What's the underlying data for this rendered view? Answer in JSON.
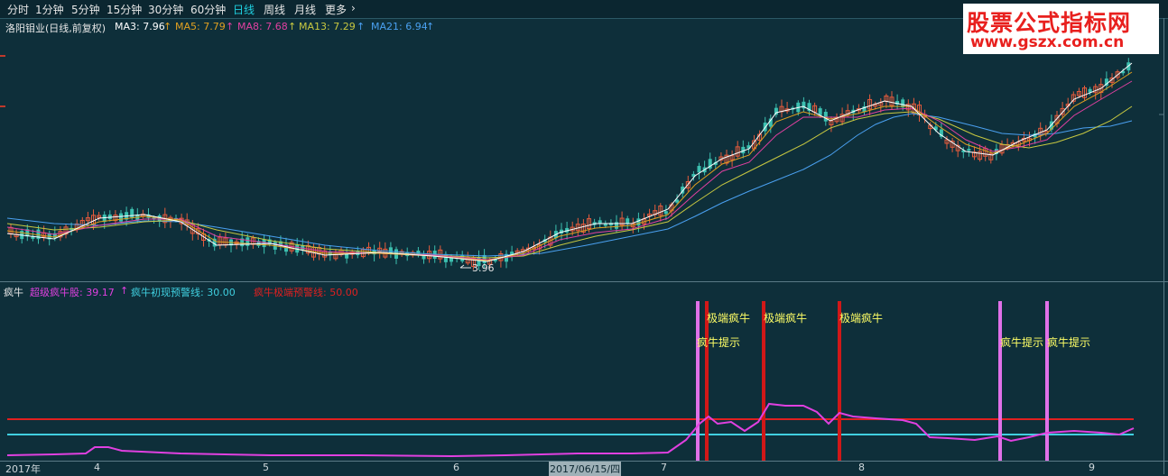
{
  "toolbar": {
    "tabs": [
      "分时",
      "1分钟",
      "5分钟",
      "15分钟",
      "30分钟",
      "60分钟",
      "日线",
      "周线",
      "月线",
      "更多"
    ],
    "active": "日线"
  },
  "main_chart": {
    "stock_title": "洛阳钼业(日线,前复权)",
    "ma_labels": [
      {
        "text": "MA3: 7.96",
        "color": "#ffffff"
      },
      {
        "text": "MA5: 7.79",
        "color": "#e0a020"
      },
      {
        "text": "MA8: 7.68",
        "color": "#e040a0"
      },
      {
        "text": "MA13: 7.29",
        "color": "#c8c840"
      },
      {
        "text": "MA21: 6.94",
        "color": "#4aa0f0"
      }
    ],
    "low_annotation": "3.96"
  },
  "sub_chart": {
    "title": "疯牛",
    "items": [
      {
        "text": "超级疯牛股: 39.17",
        "color": "#e040e0"
      },
      {
        "text": "疯牛初现预警线: 30.00",
        "color": "#40d0e0"
      },
      {
        "text": "疯牛极端预警线: 50.00",
        "color": "#e02020"
      }
    ],
    "signals": [
      {
        "text": "极端疯牛",
        "kind": "extreme"
      },
      {
        "text": "极端疯牛",
        "kind": "extreme"
      },
      {
        "text": "极端疯牛",
        "kind": "extreme"
      },
      {
        "text": "疯牛提示",
        "kind": "hint"
      },
      {
        "text": "疯牛提示",
        "kind": "hint"
      },
      {
        "text": "疯牛提示",
        "kind": "hint"
      }
    ]
  },
  "watermark": {
    "line1": "股票公式指标网",
    "line2": "www.gszx.com.cn"
  },
  "date_axis": [
    "2017年",
    "4",
    "5",
    "6",
    "2017/06/15/四",
    "7",
    "8",
    "9"
  ],
  "colors": {
    "background": "#0e2f3a",
    "up_candle": "#e55b3c",
    "down_candle": "#3cc0b0"
  }
}
